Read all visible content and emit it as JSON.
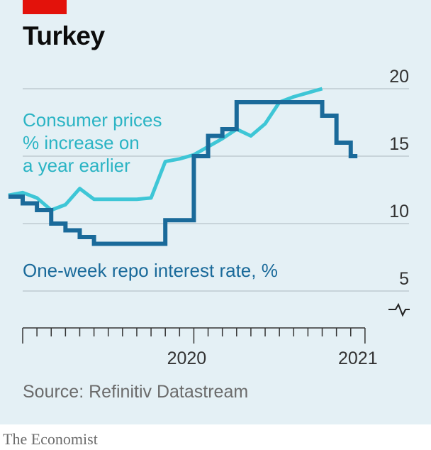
{
  "title": "Turkey",
  "source": "Source: Refinitiv Datastream",
  "footer": "The Economist",
  "colors": {
    "background": "#e4f0f5",
    "brand_red": "#e3120b",
    "cpi": "#3ec6d6",
    "repo": "#1a6a9a",
    "label_cpi": "#2bb4c4",
    "label_repo": "#1a6a9a",
    "grid": "#b8c4c9",
    "axis_text": "#333333"
  },
  "chart_data": {
    "type": "line",
    "title": "Turkey",
    "x_axis": {
      "type": "date",
      "range": [
        "2019-07",
        "2021-07"
      ],
      "tick_labels": [
        "2020",
        "2021"
      ]
    },
    "y_axis": {
      "range": [
        5,
        20
      ],
      "ticks": [
        5,
        10,
        15,
        20
      ],
      "axis_break": true,
      "position": "right"
    },
    "grid": true,
    "series": [
      {
        "name": "Consumer prices % increase on a year earlier",
        "label_lines": [
          "Consumer prices",
          "% increase on",
          "a year earlier"
        ],
        "style": "line",
        "points": [
          [
            "2019-06",
            12.1
          ],
          [
            "2019-07",
            12.3
          ],
          [
            "2019-08",
            11.9
          ],
          [
            "2019-09",
            11.0
          ],
          [
            "2019-10",
            11.4
          ],
          [
            "2019-11",
            12.6
          ],
          [
            "2019-12",
            11.8
          ],
          [
            "2020-01",
            11.8
          ],
          [
            "2020-02",
            11.8
          ],
          [
            "2020-03",
            11.8
          ],
          [
            "2020-04",
            11.9
          ],
          [
            "2020-05",
            14.6
          ],
          [
            "2020-06",
            14.8
          ],
          [
            "2020-07",
            15.1
          ],
          [
            "2020-08",
            15.7
          ],
          [
            "2020-09",
            16.3
          ],
          [
            "2020-10",
            17.0
          ],
          [
            "2020-11",
            16.5
          ],
          [
            "2020-12",
            17.4
          ],
          [
            "2021-01",
            19.0
          ],
          [
            "2021-02",
            19.4
          ],
          [
            "2021-03",
            19.7
          ],
          [
            "2021-04",
            20.0
          ]
        ]
      },
      {
        "name": "One-week repo interest rate, %",
        "label_lines": [
          "One-week repo interest rate, %"
        ],
        "style": "step",
        "points": [
          [
            "2019-06",
            12.0
          ],
          [
            "2019-07",
            11.5
          ],
          [
            "2019-08",
            11.0
          ],
          [
            "2019-09",
            10.0
          ],
          [
            "2019-10",
            9.5
          ],
          [
            "2019-11",
            9.0
          ],
          [
            "2019-12",
            8.5
          ],
          [
            "2020-01",
            8.5
          ],
          [
            "2020-02",
            8.5
          ],
          [
            "2020-03",
            8.5
          ],
          [
            "2020-04",
            8.5
          ],
          [
            "2020-05",
            10.25
          ],
          [
            "2020-06",
            10.25
          ],
          [
            "2020-07",
            15.0
          ],
          [
            "2020-08",
            16.5
          ],
          [
            "2020-09",
            17.0
          ],
          [
            "2020-10",
            19.0
          ],
          [
            "2020-11",
            19.0
          ],
          [
            "2020-12",
            19.0
          ],
          [
            "2021-01",
            19.0
          ],
          [
            "2021-02",
            19.0
          ],
          [
            "2021-03",
            19.0
          ],
          [
            "2021-04",
            18.0
          ],
          [
            "2021-05",
            16.0
          ],
          [
            "2021-06",
            15.0
          ],
          [
            "2021-06-15",
            15.0
          ]
        ]
      }
    ]
  }
}
